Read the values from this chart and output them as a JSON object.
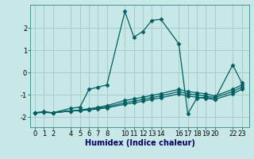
{
  "xlabel": "Humidex (Indice chaleur)",
  "bg_color": "#c8e8e8",
  "grid_color": "#a8cccc",
  "line_color": "#006060",
  "series": [
    {
      "x": [
        0,
        1,
        2,
        4,
        5,
        6,
        7,
        8,
        10,
        11,
        12,
        13,
        14,
        16,
        17,
        18,
        19,
        20,
        22,
        23
      ],
      "y": [
        -1.8,
        -1.75,
        -1.8,
        -1.6,
        -1.55,
        -0.75,
        -0.65,
        -0.55,
        2.75,
        1.6,
        1.85,
        2.35,
        2.4,
        1.3,
        -1.85,
        -1.15,
        -1.1,
        -1.2,
        0.35,
        -0.45
      ]
    },
    {
      "x": [
        0,
        1,
        2,
        4,
        5,
        6,
        7,
        8,
        10,
        11,
        12,
        13,
        14,
        16,
        17,
        18,
        19,
        20,
        22,
        23
      ],
      "y": [
        -1.8,
        -1.78,
        -1.8,
        -1.72,
        -1.68,
        -1.62,
        -1.56,
        -1.48,
        -1.25,
        -1.18,
        -1.1,
        -1.02,
        -0.94,
        -0.75,
        -0.85,
        -0.9,
        -0.95,
        -1.05,
        -0.75,
        -0.55
      ]
    },
    {
      "x": [
        0,
        1,
        2,
        4,
        5,
        6,
        7,
        8,
        10,
        11,
        12,
        13,
        14,
        16,
        17,
        18,
        19,
        20,
        22,
        23
      ],
      "y": [
        -1.8,
        -1.78,
        -1.8,
        -1.72,
        -1.69,
        -1.65,
        -1.6,
        -1.54,
        -1.35,
        -1.28,
        -1.2,
        -1.12,
        -1.04,
        -0.85,
        -0.95,
        -1.0,
        -1.05,
        -1.12,
        -0.85,
        -0.65
      ]
    },
    {
      "x": [
        0,
        1,
        2,
        4,
        5,
        6,
        7,
        8,
        10,
        11,
        12,
        13,
        14,
        16,
        17,
        18,
        19,
        20,
        22,
        23
      ],
      "y": [
        -1.8,
        -1.78,
        -1.8,
        -1.72,
        -1.7,
        -1.67,
        -1.63,
        -1.58,
        -1.42,
        -1.36,
        -1.28,
        -1.2,
        -1.13,
        -0.95,
        -1.05,
        -1.1,
        -1.15,
        -1.2,
        -0.95,
        -0.75
      ]
    }
  ],
  "xticks": [
    0,
    1,
    2,
    4,
    5,
    6,
    7,
    8,
    10,
    11,
    12,
    13,
    14,
    16,
    17,
    18,
    19,
    20,
    22,
    23
  ],
  "xtick_labels": [
    "0",
    "1",
    "2",
    "4",
    "5",
    "6",
    "7",
    "8",
    "10",
    "11",
    "12",
    "13",
    "14",
    "16",
    "17",
    "18",
    "19",
    "20",
    "22",
    "23"
  ],
  "yticks": [
    -2,
    -1,
    0,
    1,
    2
  ],
  "xlim": [
    -0.5,
    23.8
  ],
  "ylim": [
    -2.45,
    3.05
  ],
  "marker": "D",
  "markersize": 2.5,
  "linewidth": 0.9,
  "fontsize_label": 7,
  "fontsize_tick": 6
}
